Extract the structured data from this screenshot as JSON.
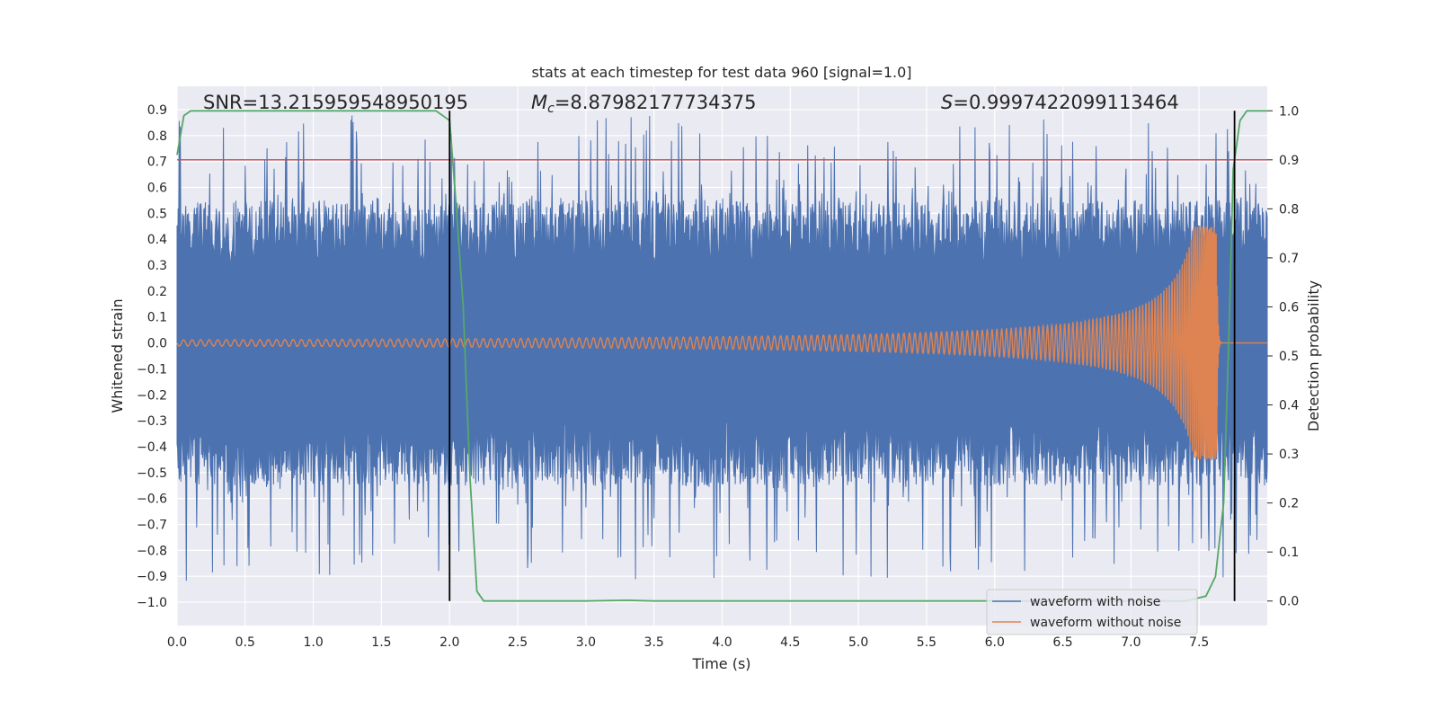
{
  "chart_data": {
    "type": "line",
    "title": "stats at each timestep for test data 960 [signal=1.0]",
    "xlabel": "Time (s)",
    "ylabel": "Whitened strain",
    "y2label": "Detection probability",
    "xlim": [
      0.0,
      8.0
    ],
    "ylim": [
      -1.09,
      0.99
    ],
    "y2lim": [
      -0.05,
      1.05
    ],
    "xticks": [
      "0.0",
      "0.5",
      "1.0",
      "1.5",
      "2.0",
      "2.5",
      "3.0",
      "3.5",
      "4.0",
      "4.5",
      "5.0",
      "5.5",
      "6.0",
      "6.5",
      "7.0",
      "7.5"
    ],
    "yticks": [
      "0.9",
      "0.8",
      "0.7",
      "0.6",
      "0.5",
      "0.4",
      "0.3",
      "0.2",
      "0.1",
      "0.0",
      "−0.1",
      "−0.2",
      "−0.3",
      "−0.4",
      "−0.5",
      "−0.6",
      "−0.7",
      "−0.8",
      "−0.9",
      "−1.0"
    ],
    "y2ticks": [
      "1.0",
      "0.9",
      "0.8",
      "0.7",
      "0.6",
      "0.5",
      "0.4",
      "0.3",
      "0.2",
      "0.1",
      "0.0"
    ],
    "grid": true,
    "legend_position": "bottom-right",
    "annotations": {
      "snr": "SNR=13.215959548950195",
      "mc_symbol": "M",
      "mc_subscript": "c",
      "mc_value": "=8.87982177734375",
      "s_symbol": "S",
      "s_value": "=0.9997422099113464"
    },
    "threshold": {
      "y2": 0.9,
      "color": "#c44e52"
    },
    "vlines": [
      2.0,
      7.76
    ],
    "series": [
      {
        "name": "waveform with noise",
        "color": "#4c72b0",
        "noise_band": [
          -0.55,
          0.55
        ],
        "peak_range": [
          -0.92,
          0.88
        ]
      },
      {
        "name": "waveform without noise",
        "color": "#dd8452",
        "merger_time": 7.63,
        "peak_amplitude": [
          -0.42,
          0.45
        ]
      },
      {
        "color": "#55a868",
        "axis": "y2",
        "x": [
          0.0,
          0.05,
          0.1,
          0.2,
          0.5,
          1.0,
          1.5,
          1.9,
          1.95,
          2.0,
          2.05,
          2.1,
          2.15,
          2.2,
          2.25,
          2.5,
          3.0,
          3.3,
          3.5,
          4.0,
          5.0,
          6.0,
          7.0,
          7.4,
          7.55,
          7.62,
          7.68,
          7.72,
          7.75,
          7.8,
          7.85,
          7.9,
          7.95,
          8.0
        ],
        "values": [
          0.91,
          0.99,
          1.0,
          1.0,
          1.0,
          1.0,
          1.0,
          1.0,
          0.99,
          0.98,
          0.8,
          0.6,
          0.25,
          0.02,
          0.0,
          0.0,
          0.0,
          0.0015,
          0.0,
          0.0,
          0.0,
          0.0,
          0.0,
          0.0,
          0.01,
          0.05,
          0.2,
          0.55,
          0.88,
          0.98,
          1.0,
          1.0,
          1.0,
          1.0
        ]
      }
    ]
  }
}
